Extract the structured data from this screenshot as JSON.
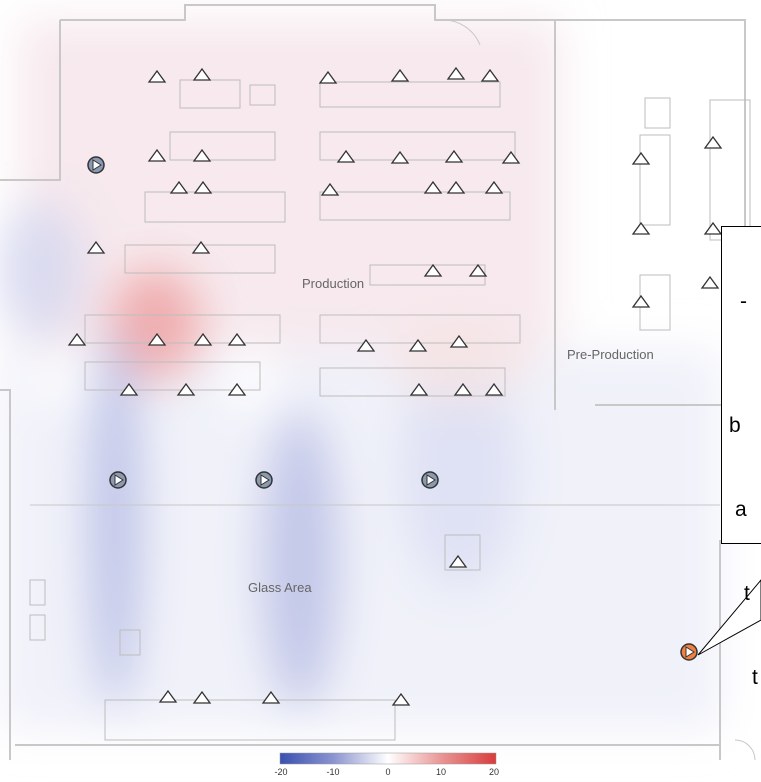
{
  "areas": [
    {
      "label": "Production"
    },
    {
      "label": "Pre-Production"
    },
    {
      "label": "Glass Area"
    }
  ],
  "callout": {
    "lines": [
      "",
      "b",
      "a",
      "t",
      "t"
    ]
  },
  "legend": {
    "ticks": [
      "-20",
      "-10",
      "0",
      "10",
      "20"
    ],
    "range": [
      -20,
      20
    ],
    "colors": {
      "low": "#3a4fb0",
      "mid": "#ffffff",
      "high": "#d93c3c"
    }
  },
  "colors": {
    "sensor_fill": "#ffffff",
    "sensor_stroke": "#333333",
    "supply_diffuser": "#7f8fa8",
    "highlight_diffuser": "#f08040",
    "walls": "#c8c8c8",
    "furniture": "#b8b8b8"
  },
  "icons": {
    "sensor": "triangle-sensor-icon",
    "diffuser": "circular-diffuser-icon"
  }
}
